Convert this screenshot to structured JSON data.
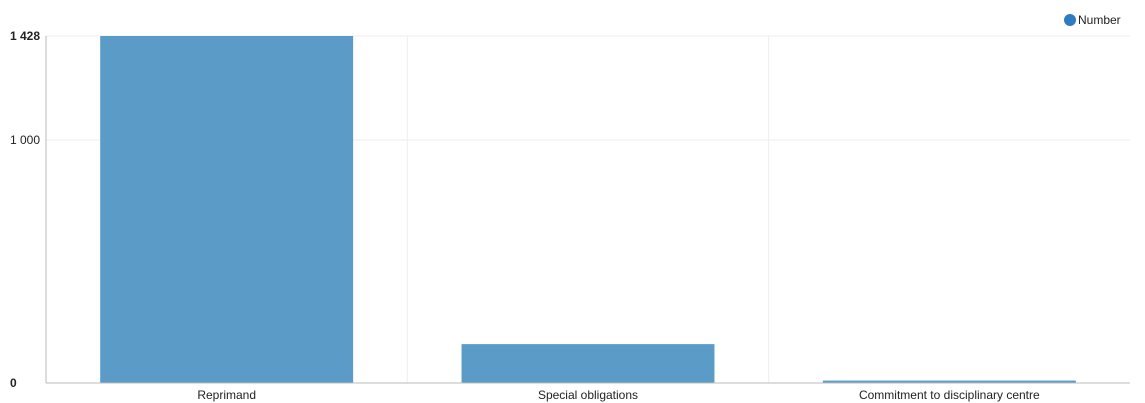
{
  "chart_data": {
    "type": "bar",
    "categories": [
      "Reprimand",
      "Special obligations",
      "Commitment to disciplinary centre"
    ],
    "series": [
      {
        "name": "Number",
        "values": [
          1428,
          160,
          10
        ]
      }
    ],
    "ylim": [
      0,
      1428
    ],
    "yticks": [
      {
        "value": 0,
        "label": "0",
        "bold": true
      },
      {
        "value": 1000,
        "label": "1 000",
        "bold": false
      },
      {
        "value": 1428,
        "label": "1 428",
        "bold": true
      }
    ],
    "grid": true,
    "legend_position": "top-right",
    "colors": {
      "bar": "#5a9bc8",
      "legend_marker": "#2f7bbf",
      "axis": "#bbbbbb",
      "grid": "#eeeeee"
    }
  }
}
